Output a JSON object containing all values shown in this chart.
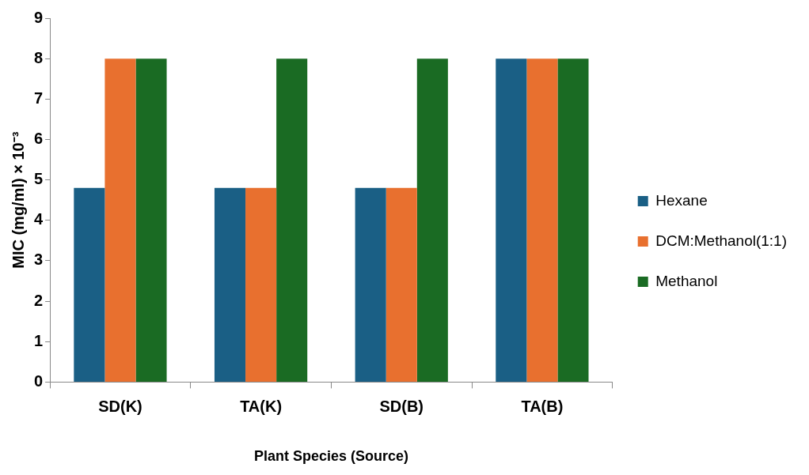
{
  "chart_data": {
    "type": "bar",
    "xlabel": "Plant Species (Source)",
    "ylabel": "MIC (mg/ml) × 10⁻³",
    "categories": [
      "SD(K)",
      "TA(K)",
      "SD(B)",
      "TA(B)"
    ],
    "series": [
      {
        "name": "Hexane",
        "color": "#1a5f85",
        "values": [
          4.8,
          4.8,
          4.8,
          8
        ]
      },
      {
        "name": "DCM:Methanol(1:1)",
        "color": "#e8702f",
        "values": [
          8,
          4.8,
          4.8,
          8
        ]
      },
      {
        "name": "Methanol",
        "color": "#1a6b23",
        "values": [
          8,
          8,
          8,
          8
        ]
      }
    ],
    "ylim": [
      0,
      9
    ],
    "yticks": [
      0,
      1,
      2,
      3,
      4,
      5,
      6,
      7,
      8,
      9
    ],
    "grid": false,
    "legend": "right"
  }
}
